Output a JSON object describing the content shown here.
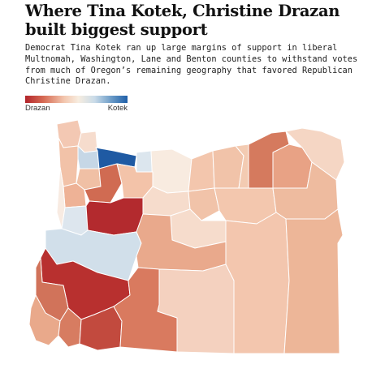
{
  "header": {
    "title": "Where Tina Kotek, Christine Drazan built biggest support",
    "description": "Democrat Tina Kotek ran up large margins of support in liberal Multnomah, Washington, Lane and Benton counties to withstand votes from much of Oregon’s remaining geography that favored Republican Christine Drazan."
  },
  "legend": {
    "left_label": "Drazan",
    "right_label": "Kotek",
    "colors": [
      "#b2242b",
      "#d66b54",
      "#f3c6ae",
      "#f7ede0",
      "#c9dbe8",
      "#6c9cc8",
      "#1f5fa8"
    ]
  },
  "map": {
    "region": "Oregon",
    "counties": [
      {
        "name": "Clatsop",
        "color": "#f3c8b3"
      },
      {
        "name": "Columbia",
        "color": "#f6dccd"
      },
      {
        "name": "Tillamook",
        "color": "#f2c2a8"
      },
      {
        "name": "Washington",
        "color": "#c6d7e6"
      },
      {
        "name": "Multnomah",
        "color": "#1f5aa3"
      },
      {
        "name": "Hood River",
        "color": "#dce6ee"
      },
      {
        "name": "Wasco",
        "color": "#f8ebe0"
      },
      {
        "name": "Sherman",
        "color": "#f3c6ad"
      },
      {
        "name": "Gilliam",
        "color": "#f1c3a9"
      },
      {
        "name": "Morrow",
        "color": "#f3cbb2"
      },
      {
        "name": "Umatilla",
        "color": "#d57a5e"
      },
      {
        "name": "Union",
        "color": "#e8a285"
      },
      {
        "name": "Wallowa",
        "color": "#f5d6c4"
      },
      {
        "name": "Yamhill",
        "color": "#f0c0a5"
      },
      {
        "name": "Polk",
        "color": "#eeb296"
      },
      {
        "name": "Marion",
        "color": "#d06b52"
      },
      {
        "name": "Clackamas",
        "color": "#f3c3a9"
      },
      {
        "name": "Lincoln",
        "color": "#f8ebe2"
      },
      {
        "name": "Benton",
        "color": "#dde6ee"
      },
      {
        "name": "Linn",
        "color": "#b32a2e"
      },
      {
        "name": "Jefferson",
        "color": "#f6dccc"
      },
      {
        "name": "Wheeler",
        "color": "#f1c3a9"
      },
      {
        "name": "Grant",
        "color": "#f3c7ae"
      },
      {
        "name": "Baker",
        "color": "#eebb9f"
      },
      {
        "name": "Lane",
        "color": "#d1dfea"
      },
      {
        "name": "Crook",
        "color": "#f6dccc"
      },
      {
        "name": "Deschutes",
        "color": "#e9a98c"
      },
      {
        "name": "Douglas",
        "color": "#b8302f"
      },
      {
        "name": "Coos",
        "color": "#d1735a"
      },
      {
        "name": "Curry",
        "color": "#e9a98b"
      },
      {
        "name": "Josephine",
        "color": "#d77c61"
      },
      {
        "name": "Jackson",
        "color": "#c24a3e"
      },
      {
        "name": "Klamath",
        "color": "#d97a5f"
      },
      {
        "name": "Lake",
        "color": "#f4d1bf"
      },
      {
        "name": "Harney",
        "color": "#f3c6ae"
      },
      {
        "name": "Malheur",
        "color": "#edb698"
      }
    ]
  }
}
